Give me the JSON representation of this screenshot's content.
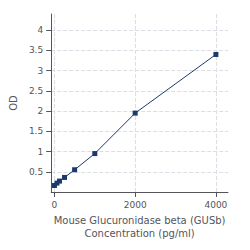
{
  "chart_data": {
    "type": "line",
    "xlabel": "Mouse Glucuronidase beta (GUSb)\nConcentration (pg/ml)",
    "ylabel": "OD",
    "x": [
      0,
      62.5,
      125,
      250,
      500,
      1000,
      2000,
      4000
    ],
    "values": [
      0.16,
      0.22,
      0.27,
      0.36,
      0.55,
      0.95,
      1.95,
      3.4
    ],
    "color": "#1a3a6b",
    "marker": "square",
    "xlim": [
      -80,
      4300
    ],
    "ylim": [
      0,
      4.4
    ],
    "xticks": [
      0,
      2000,
      4000
    ],
    "yticks": [
      0.5,
      1,
      1.5,
      2,
      2.5,
      3,
      3.5,
      4
    ],
    "grid": true
  }
}
